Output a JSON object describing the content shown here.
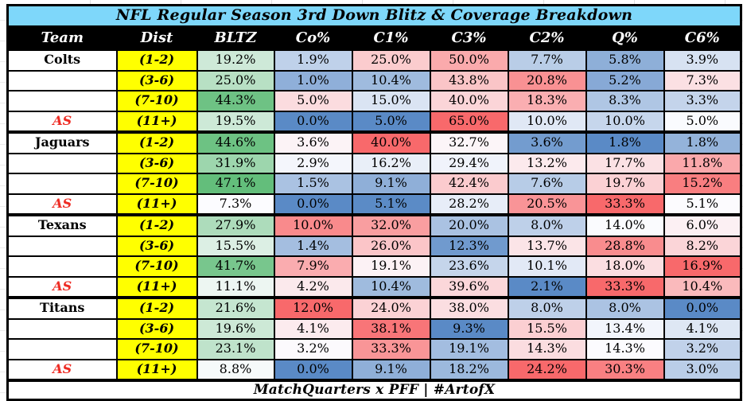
{
  "title": "NFL Regular Season 3rd Down Blitz & Coverage Breakdown",
  "footer": "MatchQuarters x PFF | #ArtofX",
  "colors": {
    "title_bg": "#7ED7FA",
    "header_bg": "#000000",
    "header_text": "#FFFFFF",
    "dist_bg": "#FFFF00",
    "as_text": "#EE2C24",
    "grid": "#000000",
    "scale_blitz": {
      "min": "#FCFCFF",
      "max": "#63BE7B"
    },
    "scale_coverage": {
      "min": "#5A8AC6",
      "mid": "#FCFCFF",
      "max": "#F8696B"
    }
  },
  "chart_data": {
    "type": "table",
    "title": "NFL Regular Season 3rd Down Blitz & Coverage Breakdown",
    "columns": [
      "Team",
      "Dist",
      "BLTZ",
      "Co%",
      "C1%",
      "C3%",
      "C2%",
      "Q%",
      "C6%"
    ],
    "value_format": "percent_one_decimal",
    "heatmap_rules": {
      "BLTZ": "two-color scale per column: white (min) to green (max)",
      "coverage_columns": "three-color scale per column: blue (min) / white (50th percentile) / red (max)"
    },
    "teams": [
      {
        "name": "Colts",
        "rows": [
          {
            "label": "Colts",
            "dist": "(1-2)",
            "values": [
              19.2,
              1.9,
              25.0,
              50.0,
              7.7,
              5.8,
              3.9
            ]
          },
          {
            "label": "",
            "dist": "(3-6)",
            "values": [
              25.0,
              1.0,
              10.4,
              43.8,
              20.8,
              5.2,
              7.3
            ]
          },
          {
            "label": "",
            "dist": "(7-10)",
            "values": [
              44.3,
              5.0,
              15.0,
              40.0,
              18.3,
              8.3,
              3.3
            ]
          },
          {
            "label": "AS",
            "dist": "(11+)",
            "values": [
              19.5,
              0.0,
              5.0,
              65.0,
              10.0,
              10.0,
              5.0
            ]
          }
        ]
      },
      {
        "name": "Jaguars",
        "rows": [
          {
            "label": "Jaguars",
            "dist": "(1-2)",
            "values": [
              44.6,
              3.6,
              40.0,
              32.7,
              3.6,
              1.8,
              1.8
            ]
          },
          {
            "label": "",
            "dist": "(3-6)",
            "values": [
              31.9,
              2.9,
              16.2,
              29.4,
              13.2,
              17.7,
              11.8
            ]
          },
          {
            "label": "",
            "dist": "(7-10)",
            "values": [
              47.1,
              1.5,
              9.1,
              42.4,
              7.6,
              19.7,
              15.2
            ]
          },
          {
            "label": "AS",
            "dist": "(11+)",
            "values": [
              7.3,
              0.0,
              5.1,
              28.2,
              20.5,
              33.3,
              5.1
            ]
          }
        ]
      },
      {
        "name": "Texans",
        "rows": [
          {
            "label": "Texans",
            "dist": "(1-2)",
            "values": [
              27.9,
              10.0,
              32.0,
              20.0,
              8.0,
              14.0,
              6.0
            ]
          },
          {
            "label": "",
            "dist": "(3-6)",
            "values": [
              15.5,
              1.4,
              26.0,
              12.3,
              13.7,
              28.8,
              8.2
            ]
          },
          {
            "label": "",
            "dist": "(7-10)",
            "values": [
              41.7,
              7.9,
              19.1,
              23.6,
              10.1,
              18.0,
              16.9
            ]
          },
          {
            "label": "AS",
            "dist": "(11+)",
            "values": [
              11.1,
              4.2,
              10.4,
              39.6,
              2.1,
              33.3,
              10.4
            ]
          }
        ]
      },
      {
        "name": "Titans",
        "rows": [
          {
            "label": "Titans",
            "dist": "(1-2)",
            "values": [
              21.6,
              12.0,
              24.0,
              38.0,
              8.0,
              8.0,
              0.0
            ]
          },
          {
            "label": "",
            "dist": "(3-6)",
            "values": [
              19.6,
              4.1,
              38.1,
              9.3,
              15.5,
              13.4,
              4.1
            ]
          },
          {
            "label": "",
            "dist": "(7-10)",
            "values": [
              23.1,
              3.2,
              33.3,
              19.1,
              14.3,
              14.3,
              3.2
            ]
          },
          {
            "label": "AS",
            "dist": "(11+)",
            "values": [
              8.8,
              0.0,
              9.1,
              18.2,
              24.2,
              30.3,
              3.0
            ]
          }
        ]
      }
    ]
  }
}
